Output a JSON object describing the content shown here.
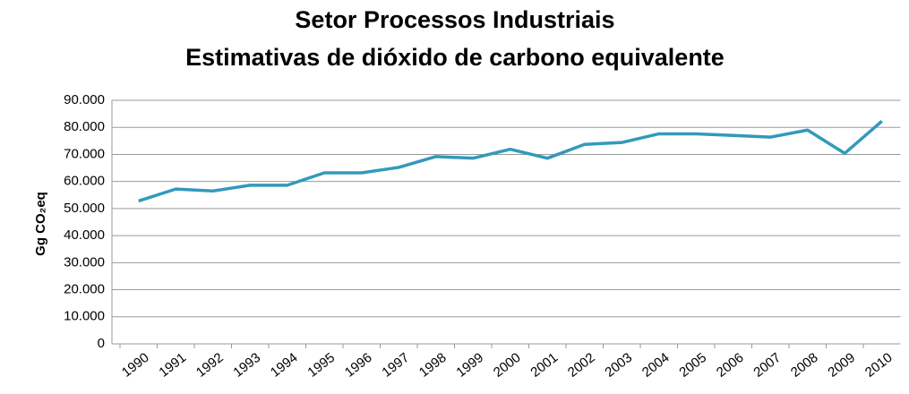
{
  "chart_data": {
    "type": "line",
    "title": "Setor Processos Industriais",
    "subtitle": "Estimativas de dióxido de carbono equivalente",
    "y_label": "Gg CO₂eq",
    "categories": [
      "1990",
      "1991",
      "1992",
      "1993",
      "1994",
      "1995",
      "1996",
      "1997",
      "1998",
      "1999",
      "2000",
      "2001",
      "2002",
      "2003",
      "2004",
      "2005",
      "2006",
      "2007",
      "2008",
      "2009",
      "2010"
    ],
    "values": [
      52800,
      57200,
      56500,
      58600,
      58600,
      63200,
      63200,
      65200,
      69200,
      68600,
      71900,
      68600,
      73700,
      74400,
      77600,
      77600,
      77000,
      76400,
      79000,
      70400,
      82300
    ],
    "color": "#3399bb",
    "ylim": [
      0,
      90000
    ],
    "yticks": [
      0,
      {
        "value": 10000,
        "label": "10.000"
      },
      {
        "value": 20000,
        "label": "20.000"
      },
      {
        "value": 30000,
        "label": "30.000"
      },
      {
        "value": 40000,
        "label": "40.000"
      },
      {
        "value": 50000,
        "label": "50.000"
      },
      {
        "value": 60000,
        "label": "60.000"
      },
      {
        "value": 70000,
        "label": "70.000"
      },
      {
        "value": 80000,
        "label": "80.000"
      },
      {
        "value": 90000,
        "label": "90.000"
      }
    ],
    "grid": true
  }
}
